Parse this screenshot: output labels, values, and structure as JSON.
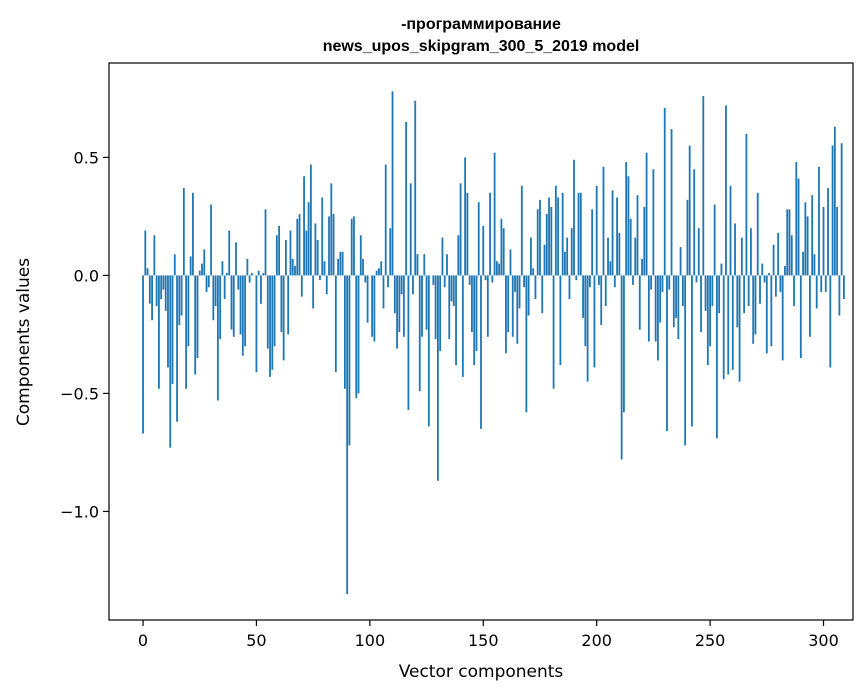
{
  "chart_data": {
    "type": "bar",
    "title_line1": "-программирование",
    "title_line2": "news_upos_skipgram_300_5_2019 model",
    "xlabel": "Vector components",
    "ylabel": "Components values",
    "xlim": [
      -15,
      313
    ],
    "ylim": [
      -1.46,
      0.9
    ],
    "xticks": [
      0,
      50,
      100,
      150,
      200,
      250,
      300
    ],
    "yticks": [
      -1.0,
      -0.5,
      0.0,
      0.5
    ],
    "ytick_labels": [
      "−1.0",
      "−0.5",
      "0.0",
      "0.5"
    ],
    "bar_color": "#1f77b4",
    "grid": false,
    "values": [
      -0.67,
      0.19,
      0.03,
      -0.12,
      -0.19,
      0.17,
      -0.13,
      -0.48,
      -0.1,
      -0.06,
      -0.15,
      -0.39,
      -0.73,
      -0.46,
      0.09,
      -0.62,
      -0.21,
      -0.17,
      0.37,
      -0.48,
      -0.3,
      0.08,
      0.35,
      -0.42,
      -0.35,
      0.02,
      0.05,
      0.11,
      -0.07,
      -0.05,
      0.3,
      -0.19,
      -0.13,
      -0.53,
      -0.27,
      0.06,
      -0.1,
      0.01,
      0.19,
      -0.23,
      -0.26,
      0.14,
      -0.06,
      -0.25,
      -0.34,
      -0.3,
      0.07,
      -0.03,
      0.01,
      0.0,
      -0.41,
      0.02,
      -0.12,
      0.01,
      0.28,
      -0.31,
      -0.43,
      -0.4,
      -0.3,
      0.17,
      0.21,
      -0.24,
      -0.36,
      0.15,
      -0.25,
      0.19,
      0.07,
      0.04,
      0.24,
      0.26,
      -0.09,
      0.42,
      0.19,
      0.31,
      0.47,
      -0.14,
      0.22,
      0.15,
      -0.02,
      0.33,
      0.06,
      -0.08,
      0.25,
      0.39,
      0.26,
      -0.41,
      0.07,
      0.1,
      0.1,
      -0.48,
      -1.35,
      -0.72,
      0.24,
      0.25,
      -0.52,
      -0.5,
      0.17,
      0.07,
      -0.03,
      -0.2,
      0.0,
      -0.26,
      -0.28,
      0.02,
      0.03,
      0.06,
      -0.14,
      0.47,
      -0.05,
      0.2,
      0.78,
      -0.16,
      -0.31,
      -0.24,
      -0.08,
      -0.26,
      0.65,
      -0.57,
      0.39,
      -0.08,
      0.74,
      0.09,
      -0.49,
      -0.26,
      0.09,
      -0.23,
      -0.64,
      0.0,
      -0.04,
      -0.27,
      -0.87,
      -0.32,
      0.16,
      -0.05,
      0.09,
      -0.27,
      -0.11,
      -0.13,
      -0.38,
      0.17,
      0.39,
      -0.43,
      0.5,
      0.35,
      -0.04,
      -0.24,
      -0.38,
      -0.32,
      0.31,
      -0.65,
      0.21,
      -0.02,
      -0.26,
      0.35,
      -0.03,
      0.52,
      0.06,
      0.05,
      0.24,
      0.2,
      -0.33,
      -0.24,
      0.11,
      -0.26,
      -0.07,
      -0.29,
      -0.14,
      0.38,
      -0.05,
      -0.58,
      -0.17,
      0.16,
      0.03,
      -0.1,
      0.28,
      0.32,
      -0.16,
      0.13,
      0.26,
      0.33,
      0.29,
      -0.48,
      0.38,
      0.33,
      -0.38,
      0.35,
      0.1,
      0.16,
      -0.1,
      0.2,
      0.49,
      -0.02,
      0.35,
      0.35,
      -0.18,
      -0.3,
      -0.45,
      -0.05,
      0.28,
      -0.39,
      0.38,
      -0.04,
      -0.21,
      0.46,
      -0.13,
      0.16,
      0.06,
      0.36,
      -0.05,
      0.33,
      0.18,
      -0.78,
      -0.58,
      0.48,
      0.42,
      0.24,
      -0.04,
      0.16,
      0.34,
      -0.23,
      0.07,
      0.29,
      0.52,
      -0.28,
      -0.06,
      0.45,
      -0.28,
      -0.36,
      -0.2,
      -0.07,
      0.71,
      -0.66,
      -0.06,
      0.62,
      -0.22,
      -0.18,
      -0.27,
      0.12,
      -0.13,
      -0.72,
      0.32,
      0.55,
      -0.64,
      0.45,
      -0.03,
      0.2,
      -0.24,
      0.76,
      -0.15,
      -0.38,
      -0.3,
      -0.13,
      0.3,
      -0.69,
      -0.16,
      0.05,
      -0.44,
      0.72,
      -0.42,
      0.38,
      -0.4,
      0.22,
      -0.22,
      -0.45,
      0.16,
      -0.16,
      0.6,
      -0.13,
      0.2,
      -0.29,
      -0.25,
      0.35,
      -0.12,
      0.05,
      -0.03,
      -0.33,
      0.01,
      -0.3,
      0.13,
      -0.09,
      0.18,
      -0.07,
      -0.36,
      0.04,
      0.28,
      0.28,
      0.17,
      -0.13,
      0.48,
      0.41,
      -0.35,
      0.1,
      0.31,
      0.25,
      -0.26,
      0.34,
      0.09,
      -0.14,
      0.46,
      -0.07,
      0.29,
      -0.07,
      0.37,
      -0.39,
      0.55,
      0.63,
      0.29,
      -0.17,
      0.56,
      -0.1
    ]
  }
}
